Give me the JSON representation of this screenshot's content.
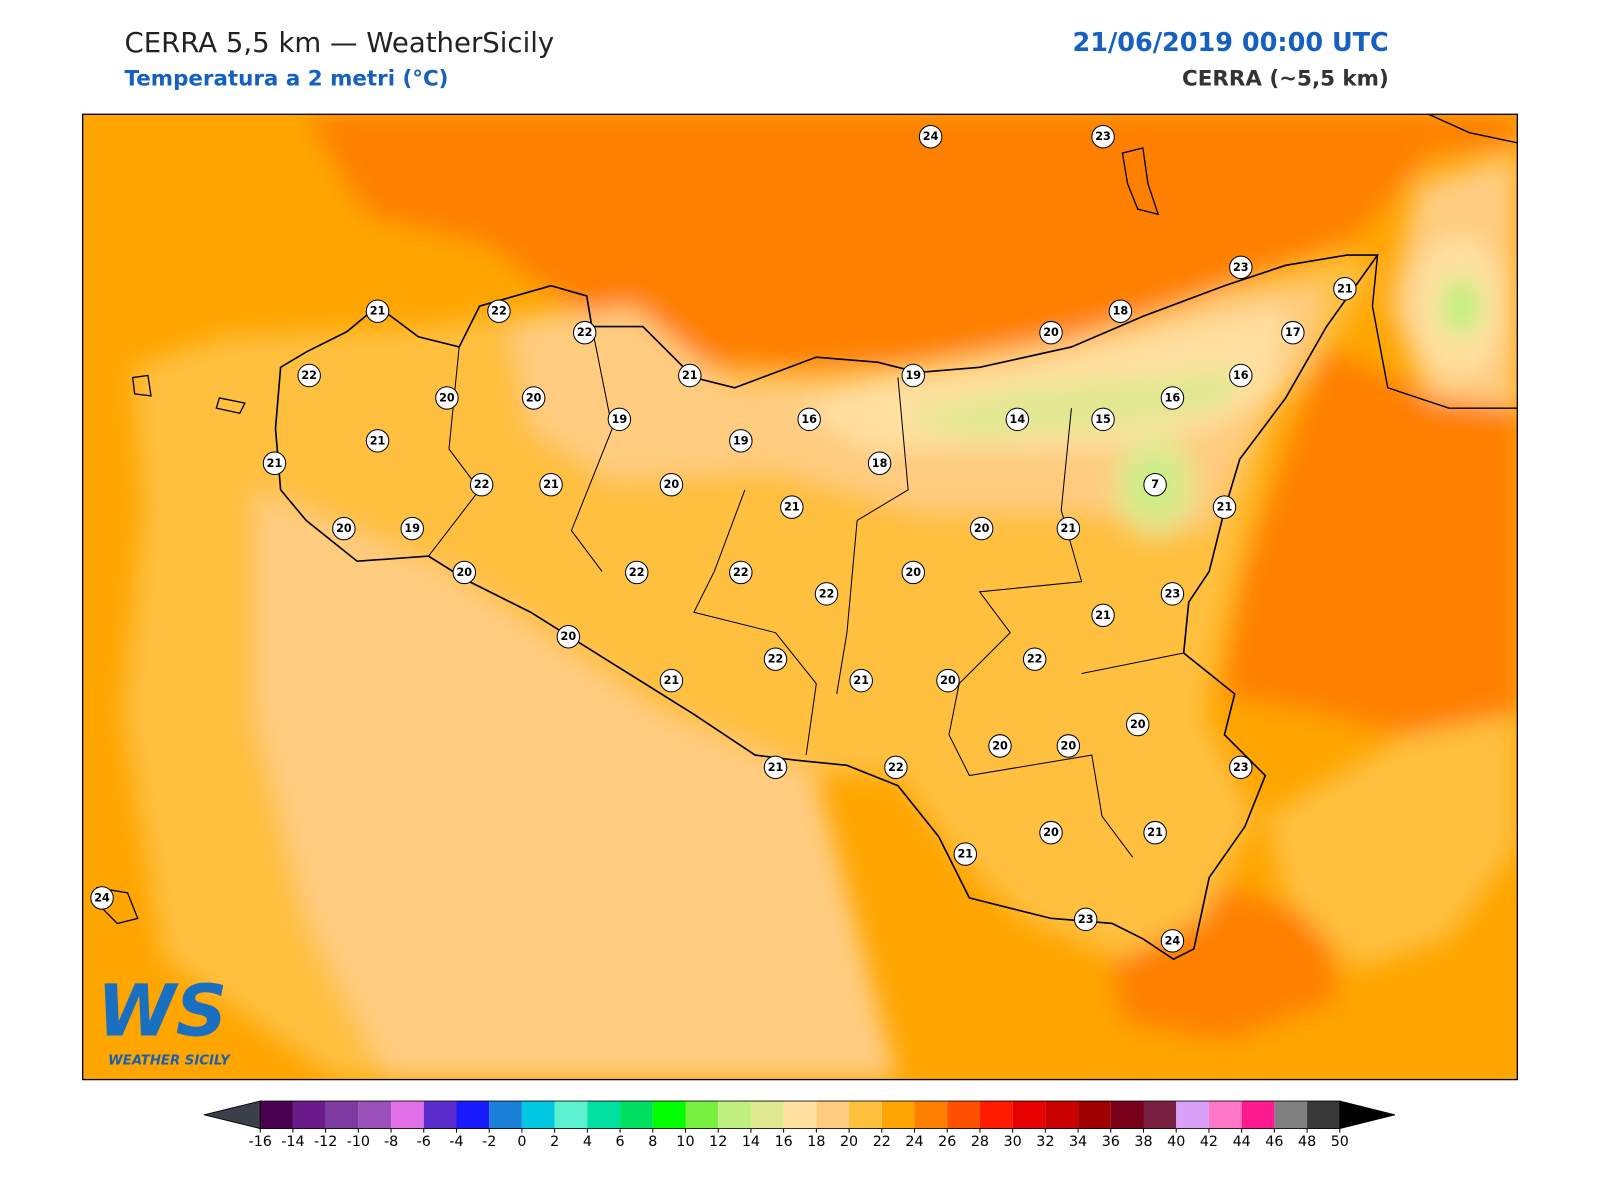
{
  "header": {
    "title": "CERRA 5,5 km — WeatherSicily",
    "subtitle": "Temperatura a 2 metri (°C)",
    "datetime": "21/06/2019 00:00 UTC",
    "model": "CERRA (~5,5 km)"
  },
  "logo": {
    "mark": "WS",
    "name": "WEATHER SICILY"
  },
  "stations": {
    "values": [
      24,
      23,
      23,
      21,
      18,
      20,
      17,
      16,
      16,
      15,
      14,
      19,
      16,
      18,
      7,
      21,
      21,
      20,
      23,
      21,
      22,
      20,
      20,
      21,
      22,
      21,
      19,
      21,
      20,
      19,
      22,
      22,
      20,
      21,
      22,
      20,
      21,
      22,
      21,
      21,
      20,
      19,
      20,
      22,
      22,
      20,
      21,
      22,
      21,
      22,
      20,
      20,
      20,
      23,
      21,
      20,
      21,
      23,
      24,
      24
    ]
  },
  "colorbar": {
    "ticks": [
      -16,
      -14,
      -12,
      -10,
      -8,
      -6,
      -4,
      -2,
      0,
      2,
      4,
      6,
      8,
      10,
      12,
      14,
      16,
      18,
      20,
      22,
      24,
      26,
      28,
      30,
      32,
      34,
      36,
      38,
      40,
      42,
      44,
      46,
      48,
      50
    ],
    "colors": [
      "#4a0050",
      "#6a1a8a",
      "#7d3aa0",
      "#9a50b8",
      "#e070e8",
      "#5a2ccc",
      "#1a1aff",
      "#1a80d8",
      "#00c8e0",
      "#5af0d0",
      "#00e0a0",
      "#00e060",
      "#00ff00",
      "#78f040",
      "#c0f080",
      "#e0e890",
      "#ffe0a0",
      "#ffcc80",
      "#ffc040",
      "#ffa500",
      "#ff8000",
      "#ff5000",
      "#ff1a00",
      "#e60000",
      "#c80000",
      "#a00000",
      "#780018",
      "#7a2040",
      "#d8a0f8",
      "#ff78c8",
      "#ff1a90",
      "#808080",
      "#383838"
    ],
    "under_color": "#3a3f4a",
    "over_color": "#000000"
  }
}
